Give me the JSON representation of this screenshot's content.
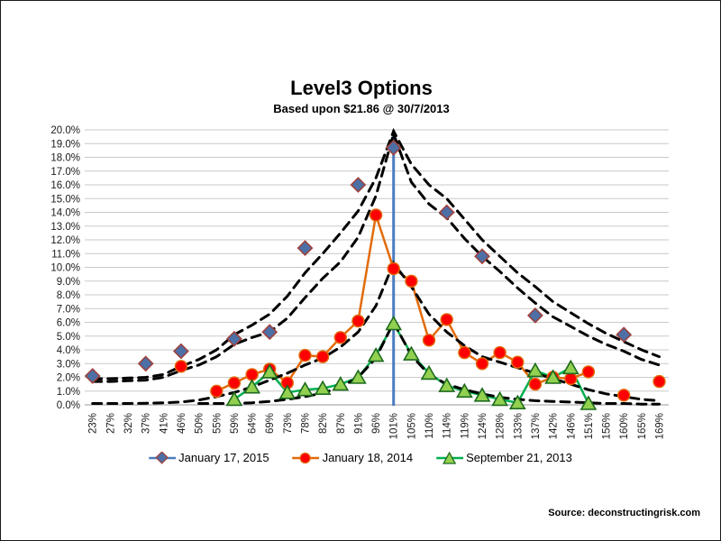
{
  "header": {
    "title": "Level3 Options",
    "subtitle": "Based upon $21.86 @ 30/7/2013"
  },
  "source_text": "Source: deconstructingrisk.com",
  "colors": {
    "vertical_line": "#4C7CC0",
    "gridline": "#C9C9C9",
    "axis_line": "#9A9A9A",
    "dashed_band": "#000000",
    "jan15_marker": "#4C6FA5",
    "jan15_marker_border": "#9E413E",
    "jan15_legend_line": "#4A7EBB",
    "jan14_line": "#E26B0A",
    "jan14_marker": "#FE0000",
    "sep13_line": "#00B050",
    "sep13_marker": "#92D050",
    "sep13_marker_border": "#1E6B1E"
  },
  "chart_data": {
    "type": "line",
    "title": "Level3 Options",
    "subtitle": "Based upon $21.86 @ 30/7/2013",
    "grid": true,
    "legend_position": "bottom",
    "ylim": [
      0,
      20
    ],
    "y_tick_step": 1,
    "y_tick_labels": [
      "0.0%",
      "1.0%",
      "2.0%",
      "3.0%",
      "4.0%",
      "5.0%",
      "6.0%",
      "7.0%",
      "8.0%",
      "9.0%",
      "10.0%",
      "11.0%",
      "12.0%",
      "13.0%",
      "14.0%",
      "15.0%",
      "16.0%",
      "17.0%",
      "18.0%",
      "19.0%",
      "20.0%"
    ],
    "categories": [
      "23%",
      "27%",
      "32%",
      "37%",
      "41%",
      "46%",
      "50%",
      "55%",
      "59%",
      "64%",
      "69%",
      "73%",
      "78%",
      "82%",
      "87%",
      "91%",
      "96%",
      "101%",
      "105%",
      "110%",
      "114%",
      "119%",
      "124%",
      "128%",
      "133%",
      "137%",
      "142%",
      "146%",
      "151%",
      "156%",
      "160%",
      "165%",
      "169%"
    ],
    "annotations": [
      {
        "type": "vertical_line",
        "at_category": "101%",
        "color": "#4C7CC0"
      }
    ],
    "series": [
      {
        "name": "January 17, 2015",
        "marker": "diamond",
        "show_line": false,
        "in_legend": true,
        "values": [
          2.1,
          null,
          null,
          3.0,
          null,
          3.9,
          null,
          null,
          4.8,
          null,
          5.3,
          null,
          11.4,
          null,
          null,
          16.0,
          null,
          18.7,
          null,
          null,
          14.0,
          null,
          10.8,
          null,
          null,
          6.5,
          null,
          null,
          null,
          null,
          5.1,
          null,
          null
        ]
      },
      {
        "name": "January 18, 2014",
        "marker": "circle",
        "show_line": true,
        "in_legend": true,
        "values": [
          null,
          null,
          null,
          null,
          null,
          2.8,
          null,
          1.0,
          1.6,
          2.2,
          2.6,
          1.6,
          3.6,
          3.5,
          4.9,
          6.1,
          13.8,
          9.9,
          9.0,
          4.7,
          6.2,
          3.8,
          3.0,
          3.8,
          3.1,
          1.5,
          2.0,
          1.9,
          2.4,
          null,
          0.7,
          null,
          1.7
        ]
      },
      {
        "name": "September 21, 2013",
        "marker": "triangle",
        "show_line": true,
        "in_legend": true,
        "values": [
          null,
          null,
          null,
          null,
          null,
          null,
          null,
          null,
          0.4,
          1.3,
          2.4,
          0.9,
          1.1,
          1.2,
          1.5,
          2.0,
          3.6,
          5.9,
          3.7,
          2.3,
          1.4,
          1.0,
          0.7,
          0.4,
          0.15,
          2.5,
          2.0,
          2.7,
          0.1,
          null,
          null,
          null,
          null
        ]
      },
      {
        "name": "jan15-outer-dashed-band",
        "marker": "none",
        "show_line": true,
        "dashed": true,
        "in_legend": false,
        "values": [
          1.9,
          1.9,
          1.95,
          2.0,
          2.2,
          2.8,
          3.3,
          4.0,
          5.1,
          5.8,
          6.6,
          7.9,
          9.6,
          11.0,
          12.5,
          14.1,
          16.5,
          19.9,
          17.5,
          16.0,
          15.0,
          13.5,
          12.0,
          10.8,
          9.6,
          8.6,
          7.5,
          6.7,
          5.9,
          5.2,
          4.6,
          4.0,
          3.5
        ]
      },
      {
        "name": "jan15-inner-dashed-band",
        "marker": "none",
        "show_line": true,
        "dashed": true,
        "in_legend": false,
        "values": [
          1.7,
          1.7,
          1.75,
          1.8,
          2.0,
          2.5,
          2.9,
          3.5,
          4.4,
          4.9,
          5.3,
          6.3,
          7.8,
          9.2,
          10.4,
          12.2,
          15.2,
          19.7,
          16.2,
          14.6,
          13.6,
          12.1,
          10.8,
          9.7,
          8.5,
          7.4,
          6.4,
          5.7,
          5.0,
          4.4,
          3.9,
          3.3,
          2.9
        ]
      },
      {
        "name": "jan14-dashed-band",
        "marker": "none",
        "show_line": true,
        "dashed": true,
        "in_legend": false,
        "values": [
          0.1,
          0.1,
          0.1,
          0.12,
          0.15,
          0.2,
          0.35,
          0.6,
          0.9,
          1.3,
          1.8,
          2.3,
          2.9,
          3.4,
          4.2,
          5.3,
          7.2,
          10.3,
          8.6,
          6.6,
          5.3,
          4.3,
          3.5,
          3.1,
          2.7,
          2.3,
          1.9,
          1.5,
          1.1,
          0.8,
          0.6,
          0.4,
          0.3
        ]
      },
      {
        "name": "sep13-dashed-band",
        "marker": "none",
        "show_line": true,
        "dashed": true,
        "in_legend": false,
        "values": [
          null,
          null,
          null,
          null,
          null,
          null,
          0.1,
          0.1,
          0.1,
          0.15,
          0.25,
          0.4,
          0.6,
          0.85,
          1.3,
          2.0,
          3.4,
          6.0,
          3.6,
          2.2,
          1.5,
          1.1,
          0.8,
          0.55,
          0.4,
          0.3,
          0.25,
          0.2,
          0.15,
          0.1,
          0.1,
          0.05,
          0.05
        ]
      }
    ]
  }
}
